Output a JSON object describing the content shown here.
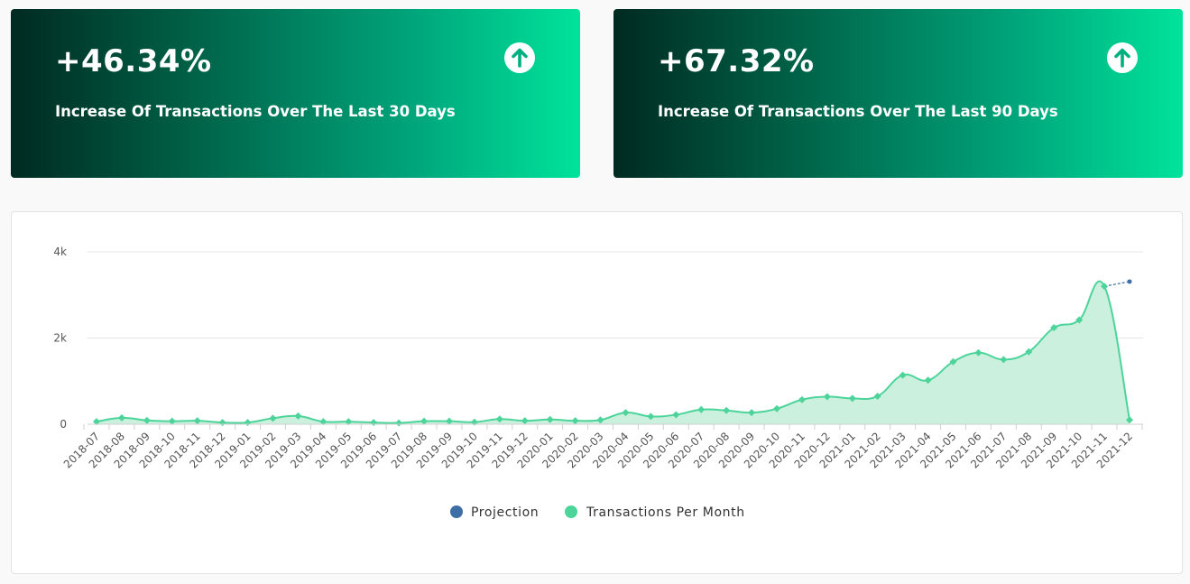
{
  "cards": [
    {
      "value": "+46.34%",
      "label": "Increase Of Transactions Over The Last 30 Days",
      "icon": "arrow-up-circle-icon"
    },
    {
      "value": "+67.32%",
      "label": "Increase Of Transactions Over The Last 90 Days",
      "icon": "arrow-up-circle-icon"
    }
  ],
  "colors": {
    "projection": "#3d6fa6",
    "transactions": "#4cd49a",
    "transactions_fill": "#c8f0dc",
    "gradient_start": "#002a21",
    "gradient_end": "#00e39b"
  },
  "chart_data": {
    "type": "area",
    "x": [
      "2018-07",
      "2018-08",
      "2018-09",
      "2018-10",
      "2018-11",
      "2018-12",
      "2019-01",
      "2019-02",
      "2019-03",
      "2019-04",
      "2019-05",
      "2019-06",
      "2019-07",
      "2019-08",
      "2019-09",
      "2019-10",
      "2019-11",
      "2019-12",
      "2020-01",
      "2020-02",
      "2020-03",
      "2020-04",
      "2020-05",
      "2020-06",
      "2020-07",
      "2020-08",
      "2020-09",
      "2020-10",
      "2020-11",
      "2020-12",
      "2021-01",
      "2021-02",
      "2021-03",
      "2021-04",
      "2021-05",
      "2021-06",
      "2021-07",
      "2021-08",
      "2021-09",
      "2021-10",
      "2021-11",
      "2021-12"
    ],
    "series": [
      {
        "name": "Projection",
        "x": [
          "2021-11",
          "2021-12"
        ],
        "values": [
          3200,
          3310
        ]
      },
      {
        "name": "Transactions Per Month",
        "values": [
          60,
          150,
          90,
          70,
          80,
          40,
          40,
          140,
          190,
          60,
          60,
          40,
          30,
          70,
          70,
          50,
          120,
          80,
          110,
          80,
          100,
          270,
          180,
          220,
          340,
          320,
          270,
          360,
          570,
          640,
          600,
          650,
          1140,
          1020,
          1450,
          1660,
          1500,
          1680,
          2240,
          2420,
          3200,
          100
        ]
      }
    ],
    "yticks": [
      {
        "value": 0,
        "label": "0"
      },
      {
        "value": 2000,
        "label": "2k"
      },
      {
        "value": 4000,
        "label": "4k"
      }
    ],
    "ylim": [
      0,
      4000
    ],
    "grid": true,
    "legend_position": "bottom-center"
  }
}
